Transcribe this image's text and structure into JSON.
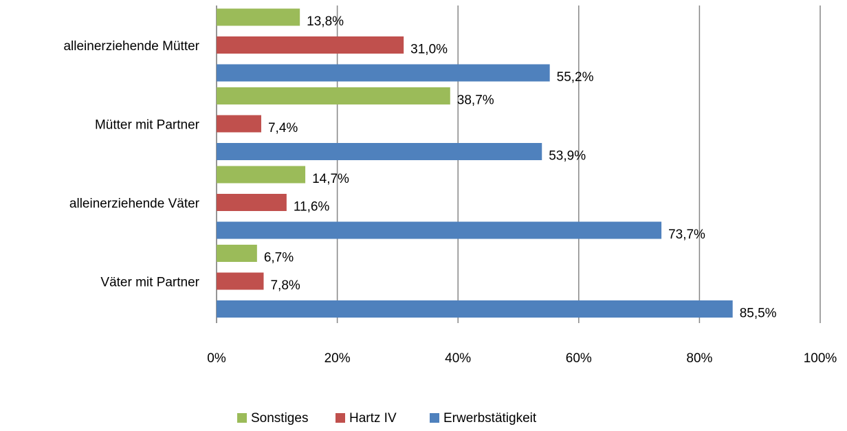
{
  "chart_data": {
    "type": "bar",
    "orientation": "horizontal",
    "categories": [
      "alleinerziehende Mütter",
      "Mütter mit Partner",
      "alleinerziehende Väter",
      "Väter mit Partner"
    ],
    "series": [
      {
        "name": "Sonstiges",
        "color": "#9bbb59",
        "values": [
          13.8,
          38.7,
          14.7,
          6.7
        ],
        "value_labels": [
          "13,8%",
          "38,7%",
          "14,7%",
          "6,7%"
        ]
      },
      {
        "name": "Hartz IV",
        "color": "#c0504d",
        "values": [
          31.0,
          7.4,
          11.6,
          7.8
        ],
        "value_labels": [
          "31,0%",
          "7,4%",
          "11,6%",
          "7,8%"
        ]
      },
      {
        "name": "Erwerbstätigkeit",
        "color": "#4f81bd",
        "values": [
          55.2,
          53.9,
          73.7,
          85.5
        ],
        "value_labels": [
          "55,2%",
          "53,9%",
          "73,7%",
          "85,5%"
        ]
      }
    ],
    "xlim": [
      0,
      100
    ],
    "xticks": [
      {
        "value": 0,
        "label": "0%"
      },
      {
        "value": 20,
        "label": "20%"
      },
      {
        "value": 40,
        "label": "40%"
      },
      {
        "value": 60,
        "label": "60%"
      },
      {
        "value": 80,
        "label": "80%"
      },
      {
        "value": 100,
        "label": "100%"
      }
    ],
    "grid": true,
    "legend": "bottom"
  }
}
